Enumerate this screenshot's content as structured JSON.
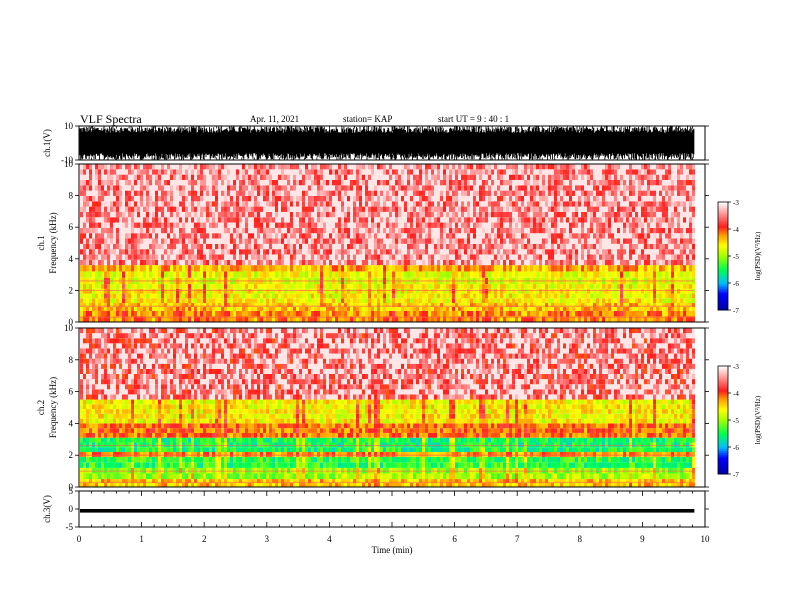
{
  "header": {
    "title": "VLF Spectra",
    "date": "Apr. 11, 2021",
    "station": "station= KAP",
    "start": "start  UT =   9 : 40 : 1"
  },
  "chart_data": [
    {
      "id": "waveform-ch1",
      "type": "line",
      "ylabel": "ch.1(V)",
      "ylim": [
        -10,
        10
      ],
      "y_ticks": [
        -10,
        10
      ],
      "x_range_min": [
        0,
        9.83
      ],
      "description_visible": "dense black waveform spanning most of the -10..10 V range"
    },
    {
      "id": "spectrogram-ch1",
      "type": "heatmap",
      "ylabel": "ch.1 Frequency (kHz)",
      "ylim": [
        0,
        10
      ],
      "y_ticks": [
        0,
        2,
        4,
        6,
        8,
        10
      ],
      "x_range_min": [
        0,
        9.83
      ],
      "colorbar": {
        "label": "log(PSD)(V²/Hz)",
        "range": [
          -7,
          -3
        ],
        "ticks": [
          -7,
          -6,
          -5,
          -4,
          -3
        ]
      },
      "bands_khz": [
        {
          "from": 0.0,
          "to": 0.7,
          "level": -4.2
        },
        {
          "from": 0.7,
          "to": 1.2,
          "level": -4.4
        },
        {
          "from": 1.2,
          "to": 2.4,
          "level": -4.6
        },
        {
          "from": 2.4,
          "to": 3.2,
          "level": -4.7
        },
        {
          "from": 3.2,
          "to": 3.6,
          "level": -4.3
        },
        {
          "from": 3.6,
          "to": 10.0,
          "level": -3.6
        }
      ]
    },
    {
      "id": "spectrogram-ch2",
      "type": "heatmap",
      "ylabel": "ch.2 Frequency (kHz)",
      "ylim": [
        0,
        10
      ],
      "y_ticks": [
        0,
        2,
        4,
        6,
        8,
        10
      ],
      "x_range_min": [
        0,
        9.83
      ],
      "colorbar": {
        "label": "log(PSD)(V²/Hz)",
        "range": [
          -7,
          -3
        ],
        "ticks": [
          -7,
          -6,
          -5,
          -4,
          -3
        ]
      },
      "bands_khz": [
        {
          "from": 0.0,
          "to": 0.5,
          "level": -4.4
        },
        {
          "from": 0.5,
          "to": 1.2,
          "level": -5.0
        },
        {
          "from": 1.2,
          "to": 1.9,
          "level": -5.4
        },
        {
          "from": 1.9,
          "to": 2.2,
          "level": -4.2
        },
        {
          "from": 2.2,
          "to": 3.1,
          "level": -5.5
        },
        {
          "from": 3.1,
          "to": 4.0,
          "level": -4.1
        },
        {
          "from": 4.0,
          "to": 5.5,
          "level": -4.6
        },
        {
          "from": 5.5,
          "to": 10.0,
          "level": -3.7
        }
      ]
    },
    {
      "id": "waveform-ch3",
      "type": "line",
      "ylabel": "ch.3(V)",
      "ylim": [
        -5,
        5
      ],
      "y_ticks": [
        -5,
        0,
        5
      ],
      "x_range_min": [
        0,
        9.83
      ],
      "level_band_v": [
        -1,
        0
      ]
    }
  ],
  "xaxis": {
    "label": "Time  (min)",
    "ticks": [
      0,
      1,
      2,
      3,
      4,
      5,
      6,
      7,
      8,
      9,
      10
    ]
  }
}
